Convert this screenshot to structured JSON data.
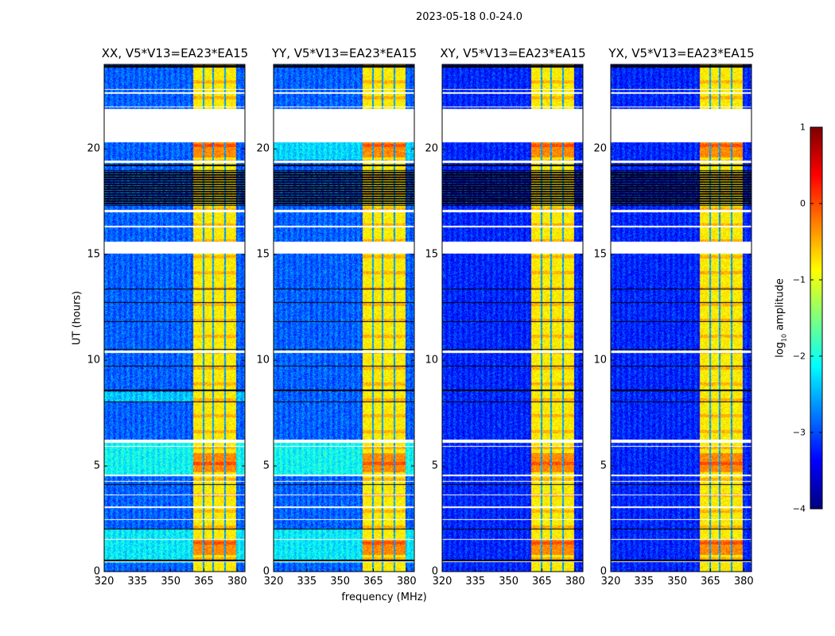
{
  "chart_data": {
    "type": "heatmap",
    "title": "2023-05-18 0.0-24.0",
    "xlabel": "frequency (MHz)",
    "ylabel": "UT (hours)",
    "xlim": [
      320,
      383.5
    ],
    "ylim": [
      0,
      24
    ],
    "xticks": [
      "320",
      "335",
      "350",
      "365",
      "380"
    ],
    "xtick_values": [
      320,
      335,
      350,
      365,
      380
    ],
    "yticks": [
      "0",
      "5",
      "10",
      "15",
      "20"
    ],
    "ytick_values": [
      0,
      5,
      10,
      15,
      20
    ],
    "colorbar": {
      "label_prefix": "log",
      "label_sub": "10",
      "label_suffix": " amplitude",
      "range": [
        -4,
        1
      ],
      "ticks": [
        "1",
        "0",
        "−1",
        "−2",
        "−3",
        "−4"
      ],
      "tick_values": [
        1,
        0,
        -1,
        -2,
        -3,
        -4
      ],
      "colormap": "jet"
    },
    "panels": [
      {
        "title": "XX, V5*V13=EA23*EA15",
        "base_level": -2.9,
        "bright_bands": [
          [
            0.4,
            2.0,
            -2.2
          ],
          [
            4.6,
            6.1,
            -2.1
          ],
          [
            8.0,
            8.5,
            -2.4
          ]
        ]
      },
      {
        "title": "YY, V5*V13=EA23*EA15",
        "base_level": -2.9,
        "bright_bands": [
          [
            0.4,
            2.0,
            -2.2
          ],
          [
            4.6,
            6.1,
            -2.1
          ],
          [
            19.5,
            20.3,
            -2.3
          ]
        ]
      },
      {
        "title": "XY, V5*V13=EA23*EA15",
        "base_level": -3.2,
        "bright_bands": []
      },
      {
        "title": "YX, V5*V13=EA23*EA15",
        "base_level": -3.2,
        "bright_bands": []
      }
    ],
    "rfi_subbands_mhz": [
      [
        360.2,
        364.6
      ],
      [
        365.2,
        368.8
      ],
      [
        369.4,
        374.2
      ],
      [
        374.8,
        379.6
      ]
    ],
    "rfi_level": -0.8,
    "flagged_hours_white": [
      [
        20.3,
        21.9
      ],
      [
        15.05,
        15.6
      ],
      [
        22.6,
        22.7
      ],
      [
        22.8,
        22.85
      ],
      [
        21.95,
        22.0
      ],
      [
        19.35,
        19.45
      ],
      [
        17.0,
        17.1
      ],
      [
        16.3,
        16.35
      ],
      [
        10.35,
        10.45
      ],
      [
        6.1,
        6.25
      ],
      [
        5.9,
        5.95
      ],
      [
        4.5,
        4.6
      ],
      [
        4.25,
        4.3
      ],
      [
        3.6,
        3.65
      ],
      [
        3.0,
        3.1
      ],
      [
        2.45,
        2.5
      ],
      [
        1.5,
        1.55
      ],
      [
        0.45,
        0.5
      ]
    ],
    "flagged_hours_black": [
      [
        17.3,
        19.0
      ],
      [
        23.85,
        23.95
      ],
      [
        19.2,
        19.25
      ],
      [
        13.35,
        13.4
      ],
      [
        12.7,
        12.75
      ],
      [
        11.8,
        11.85
      ],
      [
        10.5,
        10.55
      ],
      [
        9.7,
        9.75
      ],
      [
        8.55,
        8.6
      ],
      [
        8.0,
        8.05
      ],
      [
        4.1,
        4.15
      ],
      [
        2.0,
        2.05
      ],
      [
        0.5,
        0.55
      ]
    ],
    "colors": {
      "flagged_white": "#ffffff",
      "flagged_black": "#000000"
    }
  }
}
